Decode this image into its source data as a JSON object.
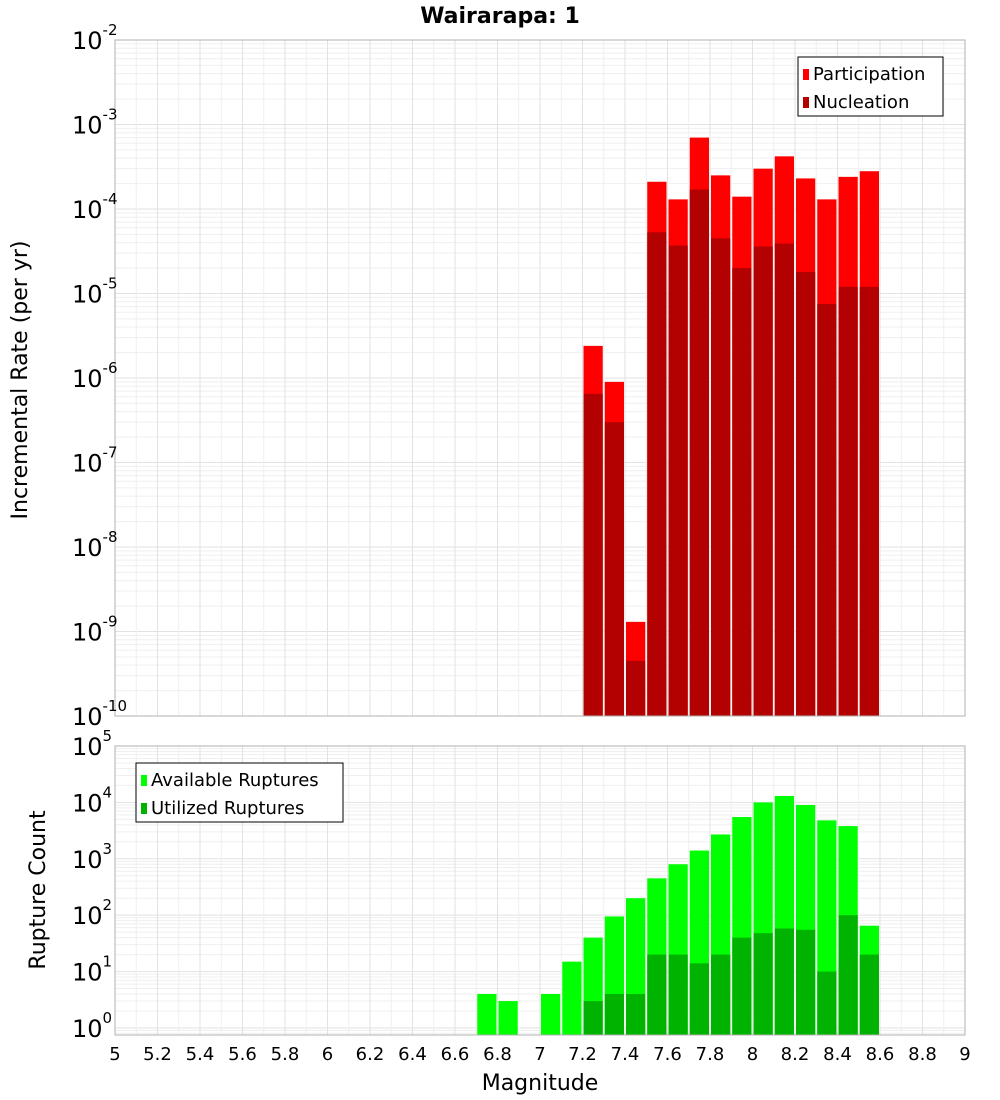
{
  "chart_data": [
    {
      "type": "bar",
      "title": "Wairarapa: 1",
      "xlabel": "",
      "ylabel": "Incremental Rate (per yr)",
      "yscale": "log",
      "xlim": [
        5,
        9
      ],
      "ylim": [
        1e-10,
        0.01
      ],
      "ytick_exponents": [
        -10,
        -9,
        -8,
        -7,
        -6,
        -5,
        -4,
        -3,
        -2
      ],
      "ytick_base": "10",
      "grid": true,
      "legend_position": "top-right",
      "bar_width": 0.1,
      "series": [
        {
          "name": "Participation",
          "color": "#ff0000",
          "x": [
            7.25,
            7.35,
            7.45,
            7.55,
            7.65,
            7.75,
            7.85,
            7.95,
            8.05,
            8.15,
            8.25,
            8.35,
            8.45,
            8.55
          ],
          "values": [
            2.4e-06,
            9e-07,
            1.3e-09,
            0.00021,
            0.00013,
            0.0007,
            0.00025,
            0.00014,
            0.0003,
            0.00042,
            0.00023,
            0.00013,
            0.00024,
            0.00028
          ]
        },
        {
          "name": "Nucleation",
          "color": "#b30000",
          "x": [
            7.25,
            7.35,
            7.45,
            7.55,
            7.65,
            7.75,
            7.85,
            7.95,
            8.05,
            8.15,
            8.25,
            8.35,
            8.45,
            8.55
          ],
          "values": [
            6.5e-07,
            3e-07,
            4.5e-10,
            5.3e-05,
            3.7e-05,
            0.00017,
            4.5e-05,
            2e-05,
            3.6e-05,
            3.9e-05,
            1.8e-05,
            7.5e-06,
            1.2e-05,
            1.2e-05
          ]
        }
      ]
    },
    {
      "type": "bar",
      "title": "",
      "xlabel": "Magnitude",
      "ylabel": "Rupture Count",
      "yscale": "log",
      "xlim": [
        5,
        9
      ],
      "ylim": [
        0.75,
        100000.0
      ],
      "ytick_exponents": [
        0,
        1,
        2,
        3,
        4,
        5
      ],
      "ytick_base": "10",
      "xticks": [
        "5",
        "5.2",
        "5.4",
        "5.6",
        "5.8",
        "6",
        "6.2",
        "6.4",
        "6.6",
        "6.8",
        "7",
        "7.2",
        "7.4",
        "7.6",
        "7.8",
        "8",
        "8.2",
        "8.4",
        "8.6",
        "8.8",
        "9"
      ],
      "grid": true,
      "legend_position": "top-left",
      "bar_width": 0.1,
      "series": [
        {
          "name": "Available Ruptures",
          "color": "#00ff00",
          "x": [
            6.75,
            6.85,
            7.05,
            7.15,
            7.25,
            7.35,
            7.45,
            7.55,
            7.65,
            7.75,
            7.85,
            7.95,
            8.05,
            8.15,
            8.25,
            8.35,
            8.45,
            8.55
          ],
          "values": [
            4,
            3,
            4,
            15,
            40,
            95,
            200,
            450,
            800,
            1400,
            2700,
            5500,
            10000,
            13000,
            9000,
            4800,
            3800,
            65
          ]
        },
        {
          "name": "Utilized Ruptures",
          "color": "#00b300",
          "x": [
            7.25,
            7.35,
            7.45,
            7.55,
            7.65,
            7.75,
            7.85,
            7.95,
            8.05,
            8.15,
            8.25,
            8.35,
            8.45,
            8.55
          ],
          "values": [
            3,
            4,
            4,
            20,
            20,
            14,
            20,
            40,
            48,
            58,
            55,
            10,
            100,
            20
          ]
        }
      ]
    }
  ]
}
